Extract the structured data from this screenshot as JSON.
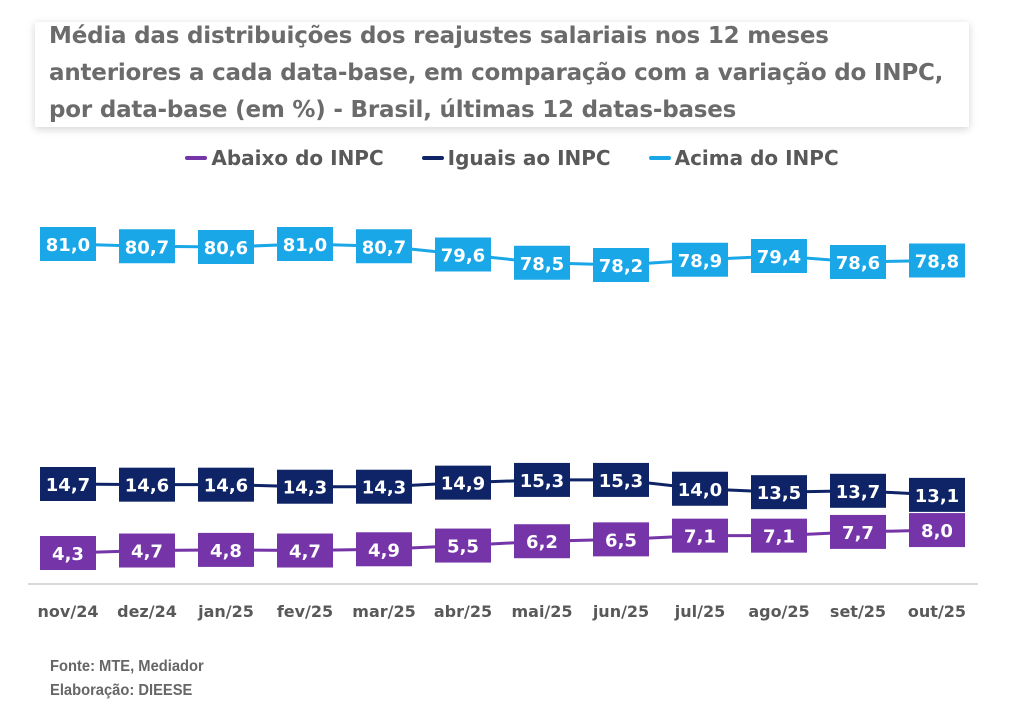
{
  "chart_data": {
    "type": "line",
    "title": "Média das distribuições dos reajustes salariais nos 12 meses anteriores a cada data-base, em comparação com a variação do INPC, por data-base (em %) - Brasil, últimas 12 datas-bases",
    "xlabel": "",
    "ylabel": "",
    "grid": false,
    "legend_position": "top",
    "categories": [
      "nov/24",
      "dez/24",
      "jan/25",
      "fev/25",
      "mar/25",
      "abr/25",
      "mai/25",
      "jun/25",
      "jul/25",
      "ago/25",
      "set/25",
      "out/25"
    ],
    "series": [
      {
        "name": "Abaixo do INPC",
        "color": "#7535A8",
        "values": [
          4.3,
          4.7,
          4.8,
          4.7,
          4.9,
          5.5,
          6.2,
          6.5,
          7.1,
          7.1,
          7.7,
          8.0
        ],
        "labels": [
          "4,3",
          "4,7",
          "4,8",
          "4,7",
          "4,9",
          "5,5",
          "6,2",
          "6,5",
          "7,1",
          "7,1",
          "7,7",
          "8,0"
        ]
      },
      {
        "name": "Iguais ao INPC",
        "color": "#0E2466",
        "values": [
          14.7,
          14.6,
          14.6,
          14.3,
          14.3,
          14.9,
          15.3,
          15.3,
          14.0,
          13.5,
          13.7,
          13.1
        ],
        "labels": [
          "14,7",
          "14,6",
          "14,6",
          "14,3",
          "14,3",
          "14,9",
          "15,3",
          "15,3",
          "14,0",
          "13,5",
          "13,7",
          "13,1"
        ]
      },
      {
        "name": "Acima do INPC",
        "color": "#1AA7E8",
        "values": [
          81.0,
          80.7,
          80.6,
          81.0,
          80.7,
          79.6,
          78.5,
          78.2,
          78.9,
          79.4,
          78.6,
          78.8
        ],
        "labels": [
          "81,0",
          "80,7",
          "80,6",
          "81,0",
          "80,7",
          "79,6",
          "78,5",
          "78,2",
          "78,9",
          "79,4",
          "78,6",
          "78,8"
        ]
      }
    ]
  },
  "footer": {
    "source": "Fonte: MTE, Mediador",
    "credit": "Elaboração: DIEESE"
  }
}
